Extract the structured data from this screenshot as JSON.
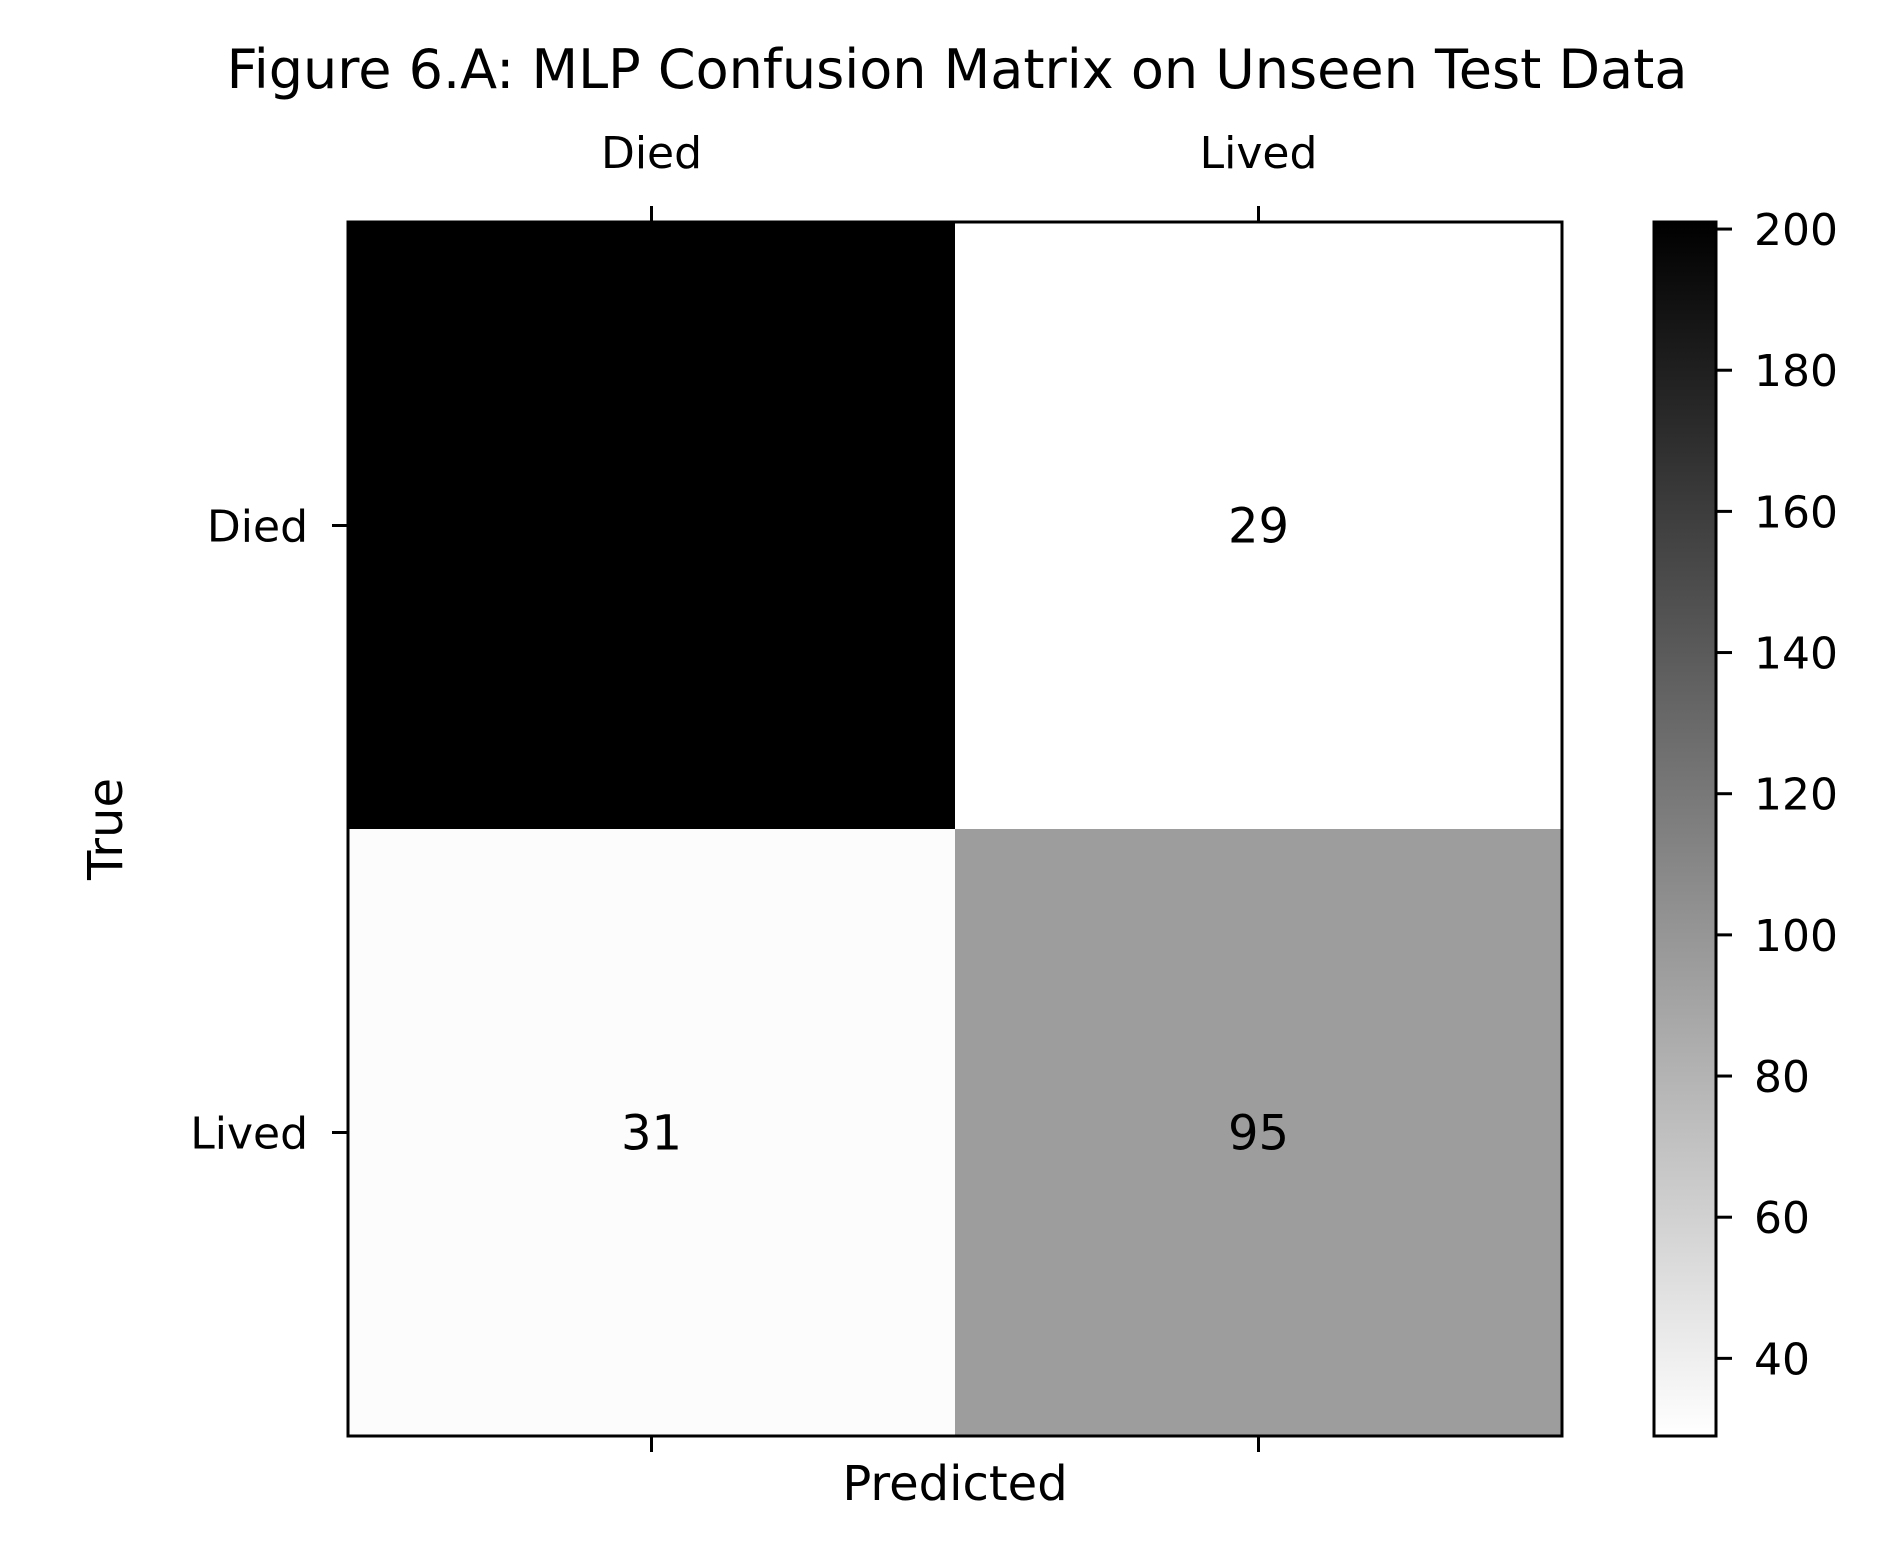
{
  "chart_data": {
    "type": "heatmap",
    "title": "Figure 6.A: MLP Confusion Matrix on Unseen Test Data",
    "xlabel": "Predicted",
    "ylabel": "True",
    "x_categories": [
      "Died",
      "Lived"
    ],
    "y_categories": [
      "Died",
      "Lived"
    ],
    "values": [
      [
        201,
        29
      ],
      [
        31,
        95
      ]
    ],
    "colormap": "Greys",
    "annotation_color": "#0000ff",
    "colorbar": {
      "vmin": 29,
      "vmax": 201,
      "ticks": [
        40,
        60,
        80,
        100,
        120,
        140,
        160,
        180,
        200
      ],
      "tick_labels": [
        "40",
        "60",
        "80",
        "100",
        "120",
        "140",
        "160",
        "180",
        "200"
      ]
    },
    "x_tick_position": "top",
    "grid": false
  }
}
